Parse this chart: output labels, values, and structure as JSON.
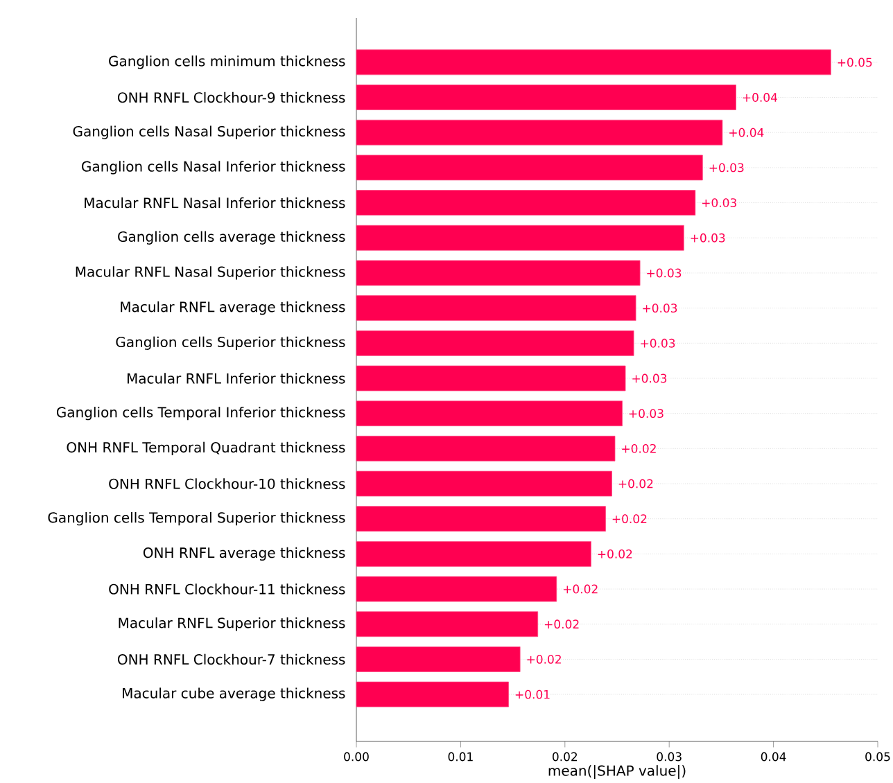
{
  "chart_data": {
    "type": "bar",
    "orientation": "horizontal",
    "xlabel": "mean(|SHAP value|)",
    "categories": [
      "Ganglion cells minimum thickness",
      "ONH RNFL Clockhour-9 thickness",
      "Ganglion cells Nasal Superior thickness",
      "Ganglion cells Nasal Inferior thickness",
      "Macular RNFL Nasal Inferior thickness",
      "Ganglion cells average thickness",
      "Macular RNFL Nasal Superior thickness",
      "Macular RNFL average thickness",
      "Ganglion cells Superior thickness",
      "Macular RNFL Inferior thickness",
      "Ganglion cells Temporal Inferior thickness",
      "ONH RNFL Temporal Quadrant thickness",
      "ONH RNFL Clockhour-10 thickness",
      "Ganglion cells Temporal Superior thickness",
      "ONH RNFL average thickness",
      "ONH RNFL Clockhour-11 thickness",
      "Macular RNFL Superior thickness",
      "ONH RNFL Clockhour-7 thickness",
      "Macular cube average thickness"
    ],
    "values": [
      0.0455,
      0.0364,
      0.0351,
      0.0332,
      0.0325,
      0.0314,
      0.0272,
      0.0268,
      0.0266,
      0.0258,
      0.0255,
      0.0248,
      0.0245,
      0.0239,
      0.0225,
      0.0192,
      0.0174,
      0.0157,
      0.0146
    ],
    "value_labels": [
      "+0.05",
      "+0.04",
      "+0.04",
      "+0.03",
      "+0.03",
      "+0.03",
      "+0.03",
      "+0.03",
      "+0.03",
      "+0.03",
      "+0.03",
      "+0.02",
      "+0.02",
      "+0.02",
      "+0.02",
      "+0.02",
      "+0.02",
      "+0.02",
      "+0.01"
    ],
    "color": "#ff0051",
    "grid": "y",
    "xlim": [
      0,
      0.05
    ],
    "xticks": [
      {
        "value": 0,
        "label": "0.00"
      },
      {
        "value": 0.01,
        "label": "0.01"
      },
      {
        "value": 0.02,
        "label": "0.02"
      },
      {
        "value": 0.03,
        "label": "0.03"
      },
      {
        "value": 0.04,
        "label": "0.04"
      },
      {
        "value": 0.05,
        "label": "0.05"
      }
    ]
  }
}
